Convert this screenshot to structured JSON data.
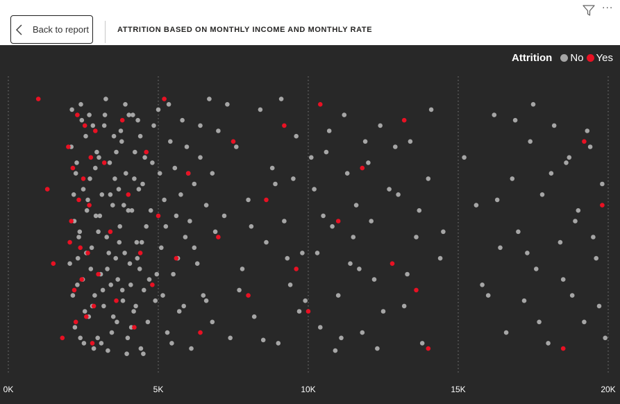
{
  "header": {
    "back_label": "Back to report",
    "title": "ATTRITION BASED ON MONTHLY INCOME AND MONTHLY RATE"
  },
  "icons": {
    "back": "chevron-left-icon",
    "filter": "filter-icon",
    "more": "more-options-icon"
  },
  "colors": {
    "background": "#282828",
    "no": "#a6a6a6",
    "yes": "#e81123",
    "gridline": "#6e6e6e"
  },
  "legend": {
    "title": "Attrition",
    "placement": "top-right",
    "items": [
      {
        "label": "No",
        "color": "#a6a6a6"
      },
      {
        "label": "Yes",
        "color": "#e81123"
      }
    ]
  },
  "chart_data": {
    "type": "scatter",
    "title": "",
    "xlabel": "",
    "ylabel": "",
    "xlim": [
      0,
      20000
    ],
    "ylim": [
      1500,
      27000
    ],
    "x_ticks": [
      {
        "value": 0,
        "label": "0K"
      },
      {
        "value": 5000,
        "label": "5K"
      },
      {
        "value": 10000,
        "label": "10K"
      },
      {
        "value": 15000,
        "label": "15K"
      },
      {
        "value": 20000,
        "label": "20K"
      }
    ],
    "y_axis_visible": false,
    "grid": "vertical dotted",
    "series": [
      {
        "name": "No",
        "color": "#a6a6a6",
        "points": [
          [
            2100,
            22000
          ],
          [
            2200,
            15000
          ],
          [
            2300,
            9000
          ],
          [
            2400,
            4000
          ],
          [
            2500,
            18000
          ],
          [
            2600,
            12000
          ],
          [
            2700,
            25000
          ],
          [
            2800,
            7000
          ],
          [
            2900,
            20000
          ],
          [
            3000,
            14000
          ],
          [
            3100,
            3500
          ],
          [
            3200,
            24000
          ],
          [
            3300,
            10500
          ],
          [
            3400,
            17500
          ],
          [
            3500,
            6000
          ],
          [
            3600,
            21500
          ],
          [
            3700,
            13000
          ],
          [
            3800,
            8500
          ],
          [
            3900,
            26000
          ],
          [
            4000,
            16000
          ],
          [
            4100,
            5000
          ],
          [
            4200,
            19000
          ],
          [
            4300,
            11500
          ],
          [
            4400,
            23000
          ],
          [
            4500,
            2500
          ],
          [
            4600,
            14500
          ],
          [
            4700,
            9500
          ],
          [
            4800,
            20500
          ],
          [
            4900,
            7500
          ],
          [
            5000,
            25500
          ],
          [
            5100,
            12500
          ],
          [
            5200,
            17000
          ],
          [
            5300,
            4500
          ],
          [
            5400,
            22500
          ],
          [
            5500,
            10000
          ],
          [
            5600,
            15500
          ],
          [
            5700,
            6500
          ],
          [
            5800,
            24500
          ],
          [
            5900,
            13500
          ],
          [
            6000,
            19500
          ],
          [
            6100,
            3000
          ],
          [
            6200,
            18500
          ],
          [
            6300,
            11000
          ],
          [
            6400,
            21000
          ],
          [
            6500,
            8000
          ],
          [
            6600,
            16500
          ],
          [
            6700,
            26500
          ],
          [
            6800,
            5500
          ],
          [
            6900,
            14000
          ],
          [
            7000,
            23500
          ],
          [
            2150,
            8000
          ],
          [
            2250,
            19500
          ],
          [
            2350,
            13500
          ],
          [
            2450,
            24500
          ],
          [
            2550,
            6500
          ],
          [
            2650,
            17000
          ],
          [
            2750,
            10500
          ],
          [
            2850,
            3000
          ],
          [
            2950,
            21500
          ],
          [
            3050,
            15500
          ],
          [
            3150,
            8500
          ],
          [
            3250,
            26500
          ],
          [
            3350,
            12000
          ],
          [
            3450,
            4500
          ],
          [
            3550,
            19000
          ],
          [
            3650,
            9500
          ],
          [
            3750,
            23500
          ],
          [
            3850,
            16500
          ],
          [
            3950,
            2500
          ],
          [
            4050,
            11000
          ],
          [
            4150,
            25000
          ],
          [
            4250,
            7000
          ],
          [
            4350,
            18000
          ],
          [
            4450,
            13000
          ],
          [
            4550,
            21000
          ],
          [
            4650,
            5500
          ],
          [
            4750,
            16000
          ],
          [
            4850,
            24000
          ],
          [
            4950,
            10000
          ],
          [
            5050,
            19500
          ],
          [
            5150,
            8000
          ],
          [
            5250,
            14500
          ],
          [
            5350,
            26000
          ],
          [
            5450,
            3500
          ],
          [
            5550,
            20000
          ],
          [
            5650,
            11500
          ],
          [
            5750,
            17500
          ],
          [
            5850,
            7000
          ],
          [
            5950,
            22000
          ],
          [
            6050,
            15000
          ],
          [
            2050,
            11000
          ],
          [
            2120,
            25500
          ],
          [
            2180,
            17500
          ],
          [
            2220,
            5000
          ],
          [
            2280,
            20500
          ],
          [
            2320,
            11500
          ],
          [
            2380,
            14000
          ],
          [
            2420,
            26000
          ],
          [
            2480,
            9500
          ],
          [
            2520,
            3500
          ],
          [
            2580,
            23000
          ],
          [
            2620,
            16000
          ],
          [
            2680,
            6000
          ],
          [
            2720,
            19000
          ],
          [
            2780,
            12500
          ],
          [
            2820,
            24000
          ],
          [
            2880,
            8000
          ],
          [
            2920,
            15500
          ],
          [
            2980,
            4000
          ],
          [
            3020,
            21000
          ],
          [
            3080,
            10000
          ],
          [
            3120,
            17500
          ],
          [
            3180,
            7000
          ],
          [
            3220,
            25000
          ],
          [
            3280,
            13500
          ],
          [
            3320,
            2800
          ],
          [
            3380,
            20500
          ],
          [
            3420,
            9000
          ],
          [
            3480,
            16500
          ],
          [
            3520,
            23000
          ],
          [
            3580,
            11500
          ],
          [
            3620,
            5500
          ],
          [
            3680,
            18000
          ],
          [
            3720,
            14500
          ],
          [
            3780,
            22500
          ],
          [
            3820,
            7500
          ],
          [
            3880,
            12000
          ],
          [
            3920,
            19500
          ],
          [
            3980,
            4000
          ],
          [
            4020,
            25000
          ],
          [
            4080,
            9000
          ],
          [
            4120,
            16000
          ],
          [
            4180,
            6500
          ],
          [
            4220,
            21500
          ],
          [
            4280,
            13000
          ],
          [
            4320,
            24500
          ],
          [
            4380,
            10500
          ],
          [
            4420,
            3000
          ],
          [
            4480,
            18500
          ],
          [
            4520,
            8500
          ],
          [
            6200,
            12500
          ],
          [
            6400,
            24000
          ],
          [
            6600,
            7500
          ],
          [
            6800,
            19500
          ],
          [
            7200,
            15500
          ],
          [
            7400,
            4000
          ],
          [
            7600,
            22000
          ],
          [
            7800,
            10500
          ],
          [
            8000,
            17000
          ],
          [
            8200,
            6000
          ],
          [
            8400,
            25500
          ],
          [
            8600,
            13000
          ],
          [
            8800,
            20000
          ],
          [
            9000,
            3500
          ],
          [
            9200,
            15000
          ],
          [
            9400,
            9000
          ],
          [
            9600,
            23000
          ],
          [
            9800,
            12000
          ],
          [
            10200,
            18000
          ],
          [
            10400,
            5000
          ],
          [
            10600,
            21500
          ],
          [
            10800,
            14500
          ],
          [
            11000,
            8000
          ],
          [
            11200,
            25000
          ],
          [
            11400,
            11000
          ],
          [
            11600,
            16500
          ],
          [
            11800,
            4500
          ],
          [
            12000,
            20500
          ],
          [
            12200,
            9500
          ],
          [
            12400,
            24000
          ],
          [
            13000,
            17500
          ],
          [
            13200,
            7000
          ],
          [
            13400,
            22500
          ],
          [
            13600,
            13500
          ],
          [
            13800,
            3500
          ],
          [
            14000,
            19000
          ],
          [
            14400,
            11500
          ],
          [
            7300,
            26000
          ],
          [
            7700,
            8500
          ],
          [
            8100,
            14500
          ],
          [
            8500,
            3800
          ],
          [
            8900,
            18500
          ],
          [
            9300,
            11500
          ],
          [
            9700,
            6500
          ],
          [
            10100,
            21000
          ],
          [
            10500,
            15500
          ],
          [
            10900,
            2800
          ],
          [
            11300,
            19500
          ],
          [
            11700,
            10500
          ],
          [
            12100,
            15000
          ],
          [
            12500,
            6500
          ],
          [
            12900,
            22000
          ],
          [
            13300,
            10000
          ],
          [
            13700,
            16000
          ],
          [
            14100,
            25500
          ],
          [
            14500,
            14000
          ],
          [
            9100,
            26500
          ],
          [
            9500,
            19000
          ],
          [
            9900,
            7500
          ],
          [
            10300,
            12000
          ],
          [
            10700,
            23500
          ],
          [
            11100,
            4000
          ],
          [
            11500,
            13500
          ],
          [
            11900,
            22500
          ],
          [
            12300,
            3000
          ],
          [
            12700,
            18000
          ],
          [
            15200,
            21000
          ],
          [
            15600,
            16500
          ],
          [
            15800,
            9000
          ],
          [
            16200,
            25000
          ],
          [
            16400,
            12500
          ],
          [
            16600,
            4500
          ],
          [
            16800,
            19000
          ],
          [
            17000,
            14000
          ],
          [
            17200,
            7500
          ],
          [
            17400,
            22500
          ],
          [
            17600,
            10500
          ],
          [
            17800,
            17500
          ],
          [
            18000,
            3500
          ],
          [
            18200,
            24000
          ],
          [
            18400,
            13000
          ],
          [
            18600,
            20500
          ],
          [
            18800,
            8000
          ],
          [
            19000,
            16000
          ],
          [
            19200,
            5500
          ],
          [
            19400,
            22000
          ],
          [
            19600,
            11500
          ],
          [
            19800,
            18500
          ],
          [
            19900,
            4000
          ],
          [
            16000,
            8000
          ],
          [
            16900,
            24500
          ],
          [
            17300,
            12000
          ],
          [
            17700,
            5500
          ],
          [
            18100,
            19500
          ],
          [
            18500,
            9500
          ],
          [
            18900,
            15000
          ],
          [
            19300,
            23500
          ],
          [
            19700,
            7000
          ],
          [
            16300,
            17000
          ],
          [
            17500,
            26000
          ],
          [
            18700,
            21000
          ],
          [
            19500,
            13500
          ]
        ]
      },
      {
        "name": "Yes",
        "color": "#e81123",
        "points": [
          [
            1000,
            26500
          ],
          [
            1300,
            18000
          ],
          [
            1500,
            11000
          ],
          [
            1800,
            4000
          ],
          [
            2000,
            22000
          ],
          [
            2100,
            15000
          ],
          [
            2200,
            8500
          ],
          [
            2300,
            25000
          ],
          [
            2400,
            12500
          ],
          [
            2500,
            19000
          ],
          [
            2600,
            6000
          ],
          [
            2700,
            16500
          ],
          [
            2800,
            3500
          ],
          [
            2900,
            23500
          ],
          [
            3000,
            10000
          ],
          [
            3200,
            20500
          ],
          [
            3400,
            14000
          ],
          [
            3600,
            7500
          ],
          [
            3800,
            24500
          ],
          [
            4000,
            17500
          ],
          [
            4200,
            5000
          ],
          [
            4400,
            12000
          ],
          [
            4600,
            21500
          ],
          [
            4800,
            9000
          ],
          [
            5000,
            15500
          ],
          [
            5200,
            26500
          ],
          [
            5600,
            11500
          ],
          [
            6000,
            19500
          ],
          [
            6400,
            4500
          ],
          [
            7000,
            13500
          ],
          [
            7500,
            22500
          ],
          [
            8000,
            8000
          ],
          [
            8600,
            17000
          ],
          [
            9200,
            24000
          ],
          [
            9600,
            10500
          ],
          [
            10000,
            6500
          ],
          [
            10400,
            26000
          ],
          [
            11000,
            15000
          ],
          [
            11800,
            20000
          ],
          [
            12800,
            11000
          ],
          [
            13200,
            24500
          ],
          [
            13600,
            8500
          ],
          [
            14000,
            3000
          ],
          [
            18500,
            3000
          ],
          [
            19200,
            22500
          ],
          [
            19800,
            16500
          ],
          [
            2050,
            13000
          ],
          [
            2150,
            20000
          ],
          [
            2250,
            5500
          ],
          [
            2350,
            17000
          ],
          [
            2450,
            9500
          ],
          [
            2550,
            24000
          ],
          [
            2650,
            12000
          ],
          [
            2750,
            21000
          ],
          [
            2850,
            7000
          ]
        ]
      }
    ]
  }
}
